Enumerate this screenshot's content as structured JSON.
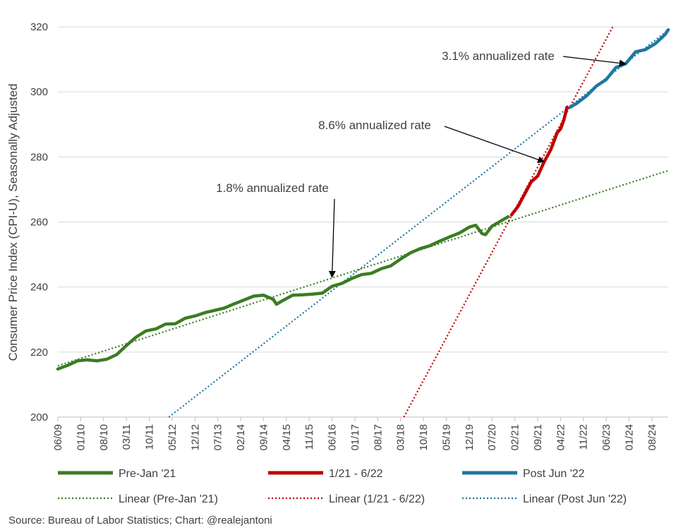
{
  "chart_data": {
    "type": "line",
    "title": "",
    "xlabel": "",
    "ylabel": "Consumer Price Index (CPI-U), Seasonally Adjusted",
    "ylim": [
      200,
      320
    ],
    "yticks": [
      200,
      220,
      240,
      260,
      280,
      300,
      320
    ],
    "x_start": "2009-06",
    "x_end": "2025-01",
    "xtick_labels": [
      "06/09",
      "01/10",
      "08/10",
      "03/11",
      "10/11",
      "05/12",
      "12/12",
      "07/13",
      "02/14",
      "09/14",
      "04/15",
      "11/15",
      "06/16",
      "01/17",
      "08/17",
      "03/18",
      "10/18",
      "05/19",
      "12/19",
      "07/20",
      "02/21",
      "09/21",
      "04/22",
      "11/22",
      "06/23",
      "01/24",
      "08/24"
    ],
    "grid": "horizontal",
    "legend_position": "bottom",
    "colors": {
      "pre": "#3A7D22",
      "mid": "#C00000",
      "post": "#1F77A0",
      "gridline": "#D9D9D9",
      "axis": "#BFBFBF",
      "text": "#404040"
    },
    "series": [
      {
        "name": "Pre-Jan '21",
        "color": "#3A7D22",
        "points": [
          [
            "2009-06",
            214.8
          ],
          [
            "2009-09",
            215.9
          ],
          [
            "2009-12",
            217.3
          ],
          [
            "2010-03",
            217.6
          ],
          [
            "2010-06",
            217.3
          ],
          [
            "2010-09",
            217.8
          ],
          [
            "2010-12",
            219.2
          ],
          [
            "2011-03",
            222.0
          ],
          [
            "2011-06",
            224.6
          ],
          [
            "2011-09",
            226.5
          ],
          [
            "2011-12",
            227.1
          ],
          [
            "2012-03",
            228.6
          ],
          [
            "2012-06",
            228.7
          ],
          [
            "2012-09",
            230.4
          ],
          [
            "2012-12",
            231.1
          ],
          [
            "2013-03",
            232.1
          ],
          [
            "2013-06",
            232.8
          ],
          [
            "2013-09",
            233.5
          ],
          [
            "2013-12",
            234.8
          ],
          [
            "2014-03",
            236.0
          ],
          [
            "2014-06",
            237.2
          ],
          [
            "2014-09",
            237.5
          ],
          [
            "2014-12",
            236.2
          ],
          [
            "2015-01",
            234.7
          ],
          [
            "2015-03",
            235.9
          ],
          [
            "2015-06",
            237.5
          ],
          [
            "2015-09",
            237.6
          ],
          [
            "2015-12",
            237.8
          ],
          [
            "2016-03",
            238.1
          ],
          [
            "2016-06",
            240.2
          ],
          [
            "2016-09",
            241.1
          ],
          [
            "2016-12",
            242.6
          ],
          [
            "2017-03",
            243.8
          ],
          [
            "2017-06",
            244.2
          ],
          [
            "2017-09",
            245.6
          ],
          [
            "2017-12",
            246.5
          ],
          [
            "2018-03",
            248.6
          ],
          [
            "2018-06",
            250.5
          ],
          [
            "2018-09",
            251.8
          ],
          [
            "2018-12",
            252.7
          ],
          [
            "2019-03",
            254.1
          ],
          [
            "2019-06",
            255.4
          ],
          [
            "2019-09",
            256.6
          ],
          [
            "2019-12",
            258.4
          ],
          [
            "2020-02",
            259.0
          ],
          [
            "2020-04",
            256.4
          ],
          [
            "2020-05",
            256.1
          ],
          [
            "2020-07",
            258.7
          ],
          [
            "2020-09",
            259.9
          ],
          [
            "2020-12",
            261.6
          ]
        ]
      },
      {
        "name": "1/21 - 6/22",
        "color": "#C00000",
        "points": [
          [
            "2021-01",
            262.2
          ],
          [
            "2021-03",
            264.8
          ],
          [
            "2021-05",
            268.6
          ],
          [
            "2021-07",
            272.3
          ],
          [
            "2021-09",
            274.1
          ],
          [
            "2021-11",
            278.5
          ],
          [
            "2022-01",
            282.2
          ],
          [
            "2022-03",
            287.5
          ],
          [
            "2022-04",
            288.6
          ],
          [
            "2022-05",
            291.3
          ],
          [
            "2022-06",
            295.3
          ]
        ]
      },
      {
        "name": "Post Jun '22",
        "color": "#1F77A0",
        "points": [
          [
            "2022-07",
            295.3
          ],
          [
            "2022-09",
            296.5
          ],
          [
            "2022-12",
            298.8
          ],
          [
            "2023-03",
            301.8
          ],
          [
            "2023-06",
            303.8
          ],
          [
            "2023-09",
            307.5
          ],
          [
            "2023-12",
            308.7
          ],
          [
            "2024-03",
            312.3
          ],
          [
            "2024-06",
            313.0
          ],
          [
            "2024-09",
            314.8
          ],
          [
            "2024-12",
            317.6
          ],
          [
            "2025-01",
            319.1
          ]
        ]
      }
    ],
    "trendlines": [
      {
        "name": "Linear (Pre-Jan '21)",
        "color": "#3A7D22",
        "from": [
          "2009-06",
          215.8
        ],
        "to": [
          "2025-01",
          275.8
        ]
      },
      {
        "name": "Linear (1/21 - 6/22)",
        "color": "#C00000",
        "from": [
          "2018-04",
          200.0
        ],
        "to": [
          "2023-08",
          320.0
        ]
      },
      {
        "name": "Linear (Post Jun '22)",
        "color": "#1F77A0",
        "from": [
          "2012-04",
          200.0
        ],
        "to": [
          "2025-01",
          319.0
        ]
      }
    ],
    "annotations": [
      {
        "text": "1.8% annualized rate",
        "target": [
          "2016-06",
          243.0
        ]
      },
      {
        "text": "8.6% annualized rate",
        "target": [
          "2021-11",
          278.5
        ]
      },
      {
        "text": "3.1% annualized rate",
        "target": [
          "2023-12",
          308.6
        ]
      }
    ],
    "legend": {
      "items": [
        {
          "label": "Pre-Jan '21",
          "style": "solid",
          "color": "#3A7D22"
        },
        {
          "label": "1/21 - 6/22",
          "style": "solid",
          "color": "#C00000"
        },
        {
          "label": "Post Jun '22",
          "style": "solid",
          "color": "#1F77A0"
        },
        {
          "label": "Linear (Pre-Jan '21)",
          "style": "dotted",
          "color": "#3A7D22"
        },
        {
          "label": "Linear (1/21 - 6/22)",
          "style": "dotted",
          "color": "#C00000"
        },
        {
          "label": "Linear (Post Jun '22)",
          "style": "dotted",
          "color": "#1F77A0"
        }
      ]
    },
    "source": "Source: Bureau of Labor Statistics; Chart: @realejantoni"
  }
}
